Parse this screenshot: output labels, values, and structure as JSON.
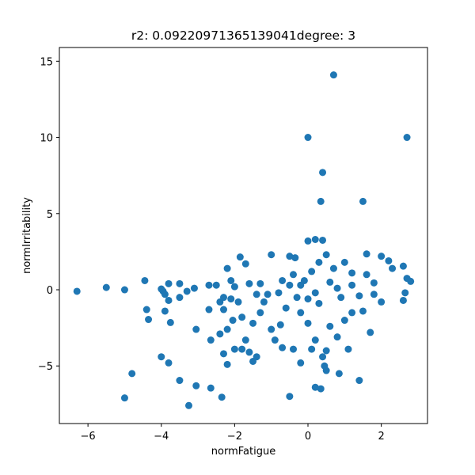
{
  "chart_data": {
    "type": "scatter",
    "title": "r2: 0.09220971365139041degree: 3",
    "xlabel": "normFatigue",
    "ylabel": "normIrritability",
    "color": "#1f77b4",
    "xlim": [
      -6.78,
      3.26
    ],
    "ylim": [
      -8.78,
      15.9
    ],
    "xticks": [
      {
        "value": -6,
        "label": "−6"
      },
      {
        "value": -4,
        "label": "−4"
      },
      {
        "value": -2,
        "label": "−2"
      },
      0,
      2
    ],
    "yticks": [
      {
        "value": -5,
        "label": "−5"
      },
      0,
      5,
      10,
      15
    ],
    "x": [
      -6.3,
      -5.5,
      -5.0,
      -4.45,
      -4.4,
      -4.35,
      -4.0,
      -3.95,
      -3.9,
      -3.8,
      -3.8,
      -3.75,
      -3.9,
      -4.0,
      -3.8,
      -4.8,
      -5.0,
      -3.5,
      -3.25,
      -3.05,
      -2.65,
      -2.35,
      -3.5,
      -3.5,
      -3.3,
      -3.1,
      -3.05,
      -2.7,
      -2.7,
      -2.65,
      -2.4,
      -2.3,
      -2.2,
      -2.5,
      -2.4,
      -2.3,
      -2.2,
      -2.1,
      -2.05,
      -2.0,
      -1.85,
      -1.8,
      -1.7,
      -1.7,
      -1.6,
      -1.5,
      -1.4,
      -1.5,
      -1.4,
      -1.3,
      -1.2,
      -1.0,
      -1.0,
      -0.9,
      -0.75,
      -0.7,
      -0.5,
      -0.5,
      -0.35,
      -0.4,
      -0.2,
      0.0,
      0.0,
      0.2,
      0.35,
      0.4,
      0.4,
      0.7,
      0.1,
      0.2,
      0.2,
      0.35,
      0.4,
      0.45,
      0.5,
      0.5,
      0.5,
      0.85,
      0.8,
      1.1,
      1.4,
      1.5,
      1.5,
      1.6,
      1.7,
      1.8,
      2.0,
      2.0,
      2.2,
      2.3,
      2.6,
      2.6,
      2.7,
      2.7,
      2.8,
      2.65,
      1.8,
      1.2,
      1.0,
      1.2,
      0.9,
      0.6,
      0.3,
      -0.1,
      -0.5,
      -0.8,
      -0.2,
      0.1,
      0.7,
      -1.6,
      -1.9,
      -2.1,
      -2.3,
      -2.0,
      -1.1,
      -0.6,
      0.0,
      0.6,
      1.0,
      1.4,
      1.6,
      0.3,
      -0.3,
      -0.4,
      -1.3,
      -1.8,
      -2.2,
      0.8,
      1.2,
      -0.7,
      0.0,
      0.2,
      -0.2
    ],
    "y": [
      -0.1,
      0.15,
      0.0,
      0.6,
      -1.3,
      -1.95,
      0.05,
      -0.1,
      -0.3,
      0.4,
      -0.7,
      -2.15,
      -1.4,
      -4.4,
      -4.8,
      -5.5,
      -7.1,
      -5.95,
      -7.6,
      -6.3,
      -6.45,
      -7.05,
      0.4,
      -0.5,
      -0.1,
      0.1,
      -2.6,
      0.3,
      -1.3,
      -3.3,
      -2.9,
      -4.2,
      -4.9,
      0.3,
      -0.8,
      -1.3,
      1.4,
      0.6,
      -2.0,
      -3.9,
      2.15,
      -3.9,
      -3.3,
      1.7,
      -4.1,
      -4.7,
      -4.4,
      -2.2,
      -0.3,
      0.4,
      -0.8,
      2.3,
      -2.6,
      -3.3,
      -2.3,
      -3.8,
      -7.0,
      2.2,
      2.1,
      -3.9,
      -4.8,
      10.0,
      3.2,
      3.3,
      5.8,
      7.7,
      3.25,
      14.1,
      -3.9,
      -3.3,
      -6.4,
      -6.5,
      -4.4,
      -5.0,
      -5.3,
      -4.0,
      2.3,
      -5.5,
      -3.1,
      -3.9,
      -5.95,
      5.8,
      -1.4,
      2.35,
      -2.8,
      -0.3,
      -0.8,
      2.2,
      1.9,
      1.4,
      1.55,
      -0.7,
      10.0,
      0.75,
      0.55,
      -0.2,
      0.45,
      -1.5,
      1.8,
      0.3,
      -0.5,
      0.5,
      -0.9,
      0.6,
      0.3,
      -0.2,
      -1.5,
      1.2,
      1.4,
      0.4,
      -0.8,
      -0.6,
      -0.5,
      0.2,
      -0.3,
      -1.2,
      -2.2,
      -2.4,
      -2.0,
      -0.4,
      1.0,
      1.8,
      -0.5,
      1.0,
      -1.5,
      -1.8,
      -2.6,
      0.1,
      1.1,
      0.6,
      -0.6,
      -0.2,
      0.3
    ]
  }
}
